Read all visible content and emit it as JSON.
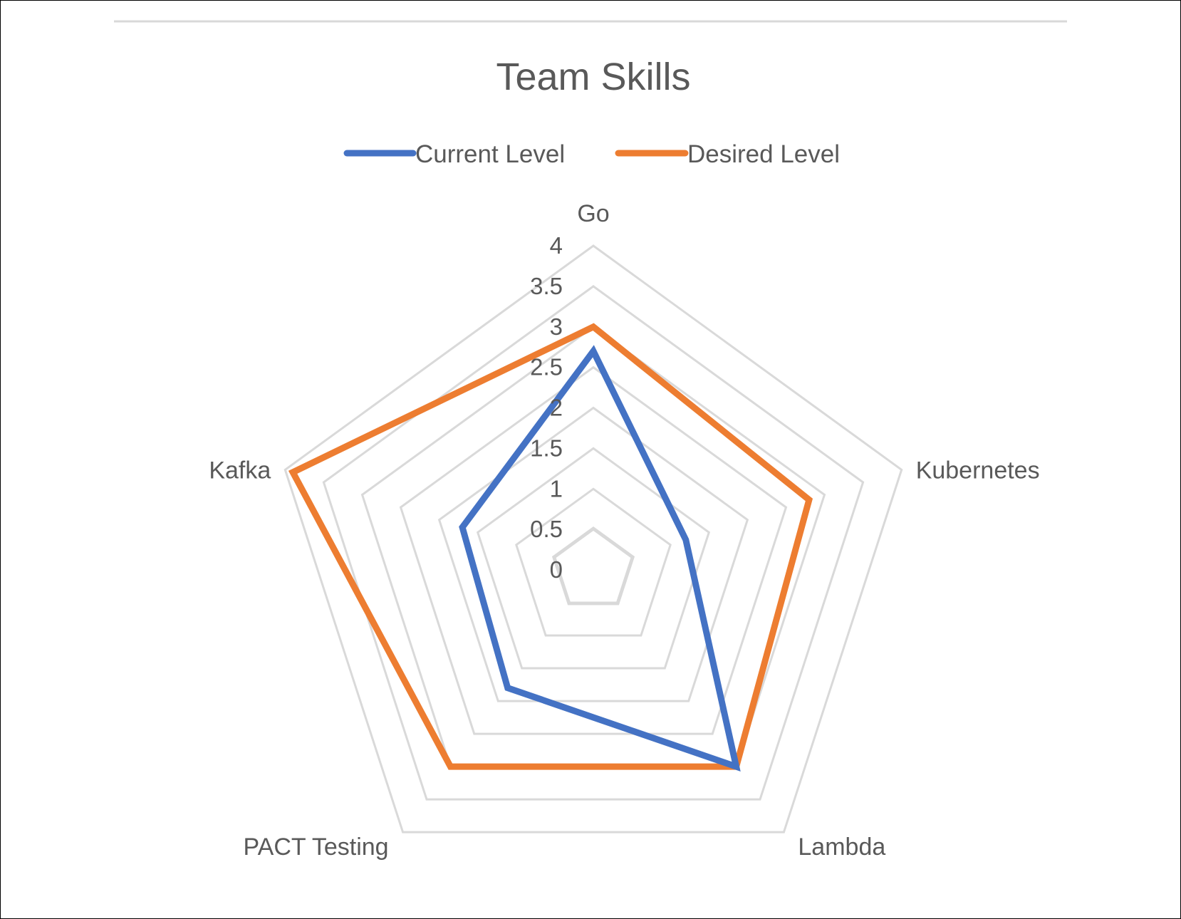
{
  "chart_data": {
    "type": "radar",
    "title": "Team Skills",
    "categories": [
      "Go",
      "Kubernetes",
      "Lambda",
      "PACT Testing",
      "Kafka"
    ],
    "rlim": [
      0,
      4
    ],
    "r_ticks": [
      "0",
      "0.5",
      "1",
      "1.5",
      "2",
      "2.5",
      "3",
      "3.5",
      "4"
    ],
    "legend_position": "top",
    "grid": true,
    "series": [
      {
        "name": "Current Level",
        "color": "#4472C4",
        "values": [
          2.7,
          1.2,
          3,
          1.8,
          1.7
        ]
      },
      {
        "name": "Desired Level",
        "color": "#ED7D31",
        "values": [
          3,
          2.8,
          3,
          3,
          3.9
        ]
      }
    ]
  }
}
